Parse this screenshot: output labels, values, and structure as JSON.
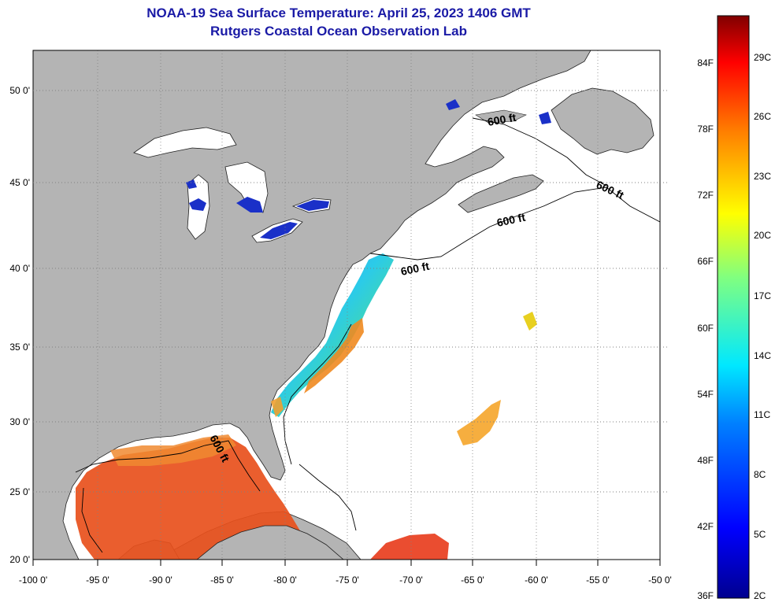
{
  "title": "NOAA-19 Sea Surface Temperature:  April 25, 2023 1406 GMT",
  "subtitle": "Rutgers Coastal Ocean Observation Lab",
  "lat_labels": [
    "50 0'",
    "45 0'",
    "40 0'",
    "35 0'",
    "30 0'",
    "25 0'",
    "20 0'"
  ],
  "lon_labels": [
    "-100 0'",
    "-95 0'",
    "-90 0'",
    "-85 0'",
    "-80 0'",
    "-75 0'",
    "-70 0'",
    "-65 0'",
    "-60 0'",
    "-55 0'",
    "-50 0'"
  ],
  "contour_labels": [
    "600 ft",
    "600 ft",
    "600 ft",
    "600 ft",
    "600 ft"
  ],
  "colorbar": {
    "f_labels": [
      "84F",
      "78F",
      "72F",
      "66F",
      "60F",
      "54F",
      "48F",
      "42F",
      "36F"
    ],
    "c_labels": [
      "29C",
      "26C",
      "23C",
      "20C",
      "17C",
      "14C",
      "11C",
      "8C",
      "5C",
      "2C"
    ]
  },
  "colors": {
    "land": "#b4b4b4",
    "no_data": "#ffffff",
    "title": "#1a1aa6",
    "lake_cold": "#1a30c8"
  }
}
